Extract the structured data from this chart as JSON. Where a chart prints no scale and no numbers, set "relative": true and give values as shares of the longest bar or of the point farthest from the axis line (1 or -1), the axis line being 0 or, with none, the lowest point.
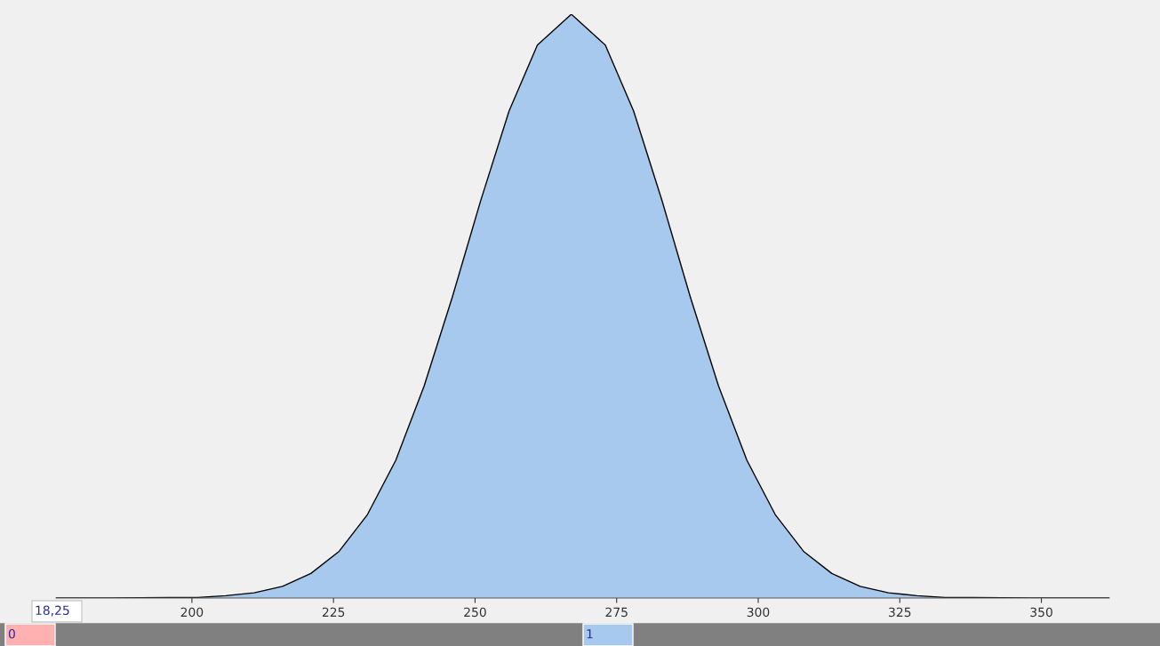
{
  "chart_data": {
    "type": "area",
    "relative": true,
    "color": "#a7c9ee",
    "x": [
      176,
      186,
      196,
      201,
      206,
      211,
      216,
      221,
      226,
      231,
      236,
      241,
      246,
      251,
      256,
      261,
      267,
      273,
      278,
      283,
      288,
      293,
      298,
      303,
      308,
      313,
      318,
      323,
      328,
      333,
      338,
      348,
      358,
      362
    ],
    "values": [
      0,
      0,
      0.001,
      0.001,
      0.004,
      0.009,
      0.02,
      0.042,
      0.08,
      0.143,
      0.236,
      0.363,
      0.516,
      0.681,
      0.834,
      0.947,
      1,
      0.947,
      0.834,
      0.681,
      0.516,
      0.363,
      0.236,
      0.143,
      0.08,
      0.042,
      0.02,
      0.009,
      0.004,
      0.001,
      0.001,
      0,
      0,
      0
    ],
    "xlim": [
      176,
      362
    ],
    "xticks": [
      200,
      225,
      250,
      275,
      300,
      325,
      350
    ],
    "grid": false,
    "legend": false,
    "annotations": [
      "18,25",
      "0",
      "1"
    ]
  }
}
